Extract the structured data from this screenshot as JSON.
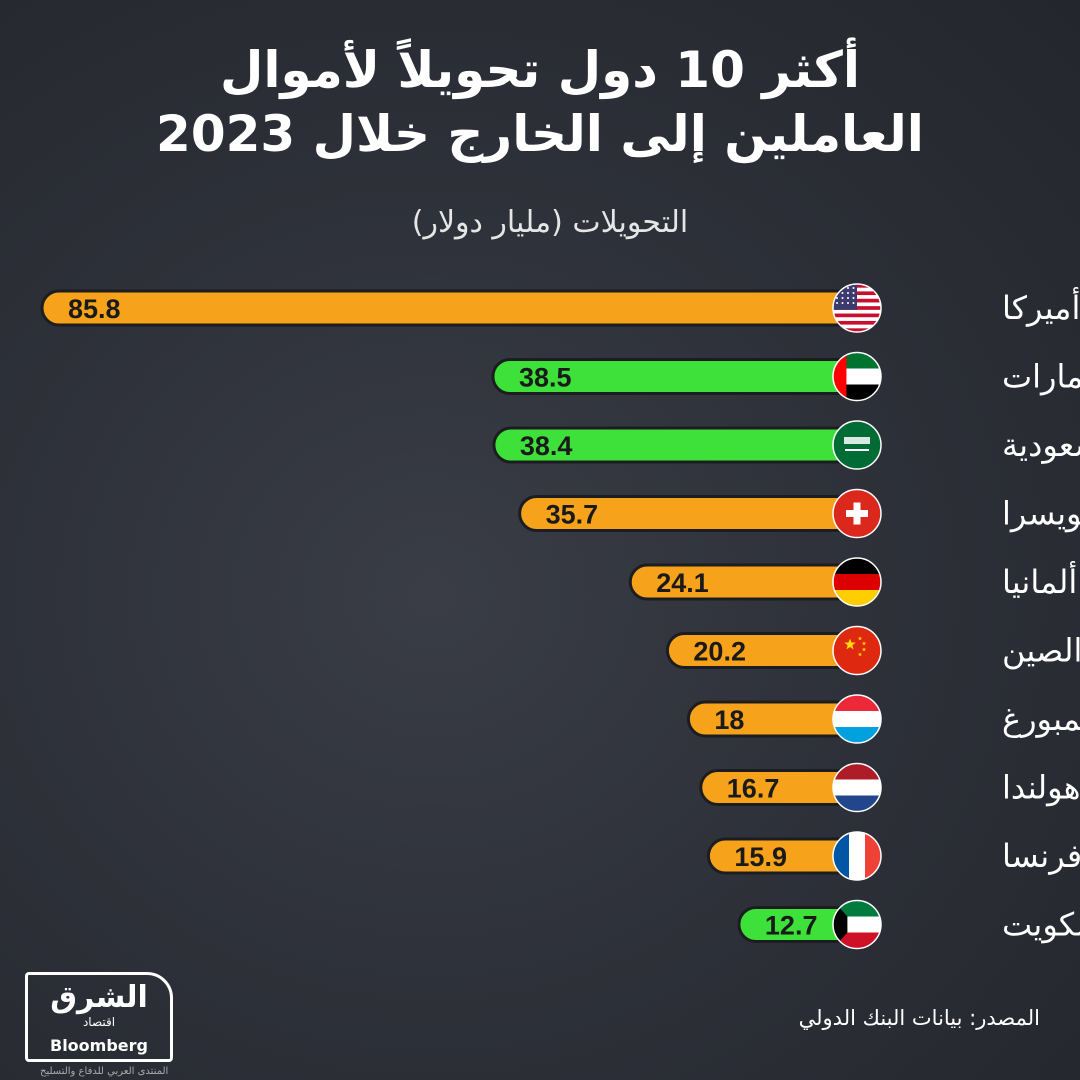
{
  "header": {
    "title_line1": "أكثر 10 دول تحويلاً لأموال",
    "title_line2": "العاملين إلى الخارج خلال 2023",
    "subtitle": "التحويلات (مليار دولار)"
  },
  "footer": {
    "source": "المصدر: بيانات البنك الدولي",
    "logo_main": "الشرق",
    "logo_sub": "اقتصاد",
    "logo_brand": "Bloomberg",
    "watermark": "المنتدى العربي للدفاع والتسليح"
  },
  "colors": {
    "orange": "#f7a21b",
    "green": "#3ee03a",
    "bar_outline": "#1c1d21",
    "value_text": "#1a1a1a"
  },
  "chart_data": {
    "type": "bar",
    "orientation": "horizontal",
    "title": "أكثر 10 دول تحويلاً لأموال العاملين إلى الخارج خلال 2023",
    "xlabel": "التحويلات (مليار دولار)",
    "xlim": [
      0,
      85.8
    ],
    "categories": [
      "أميركا",
      "الإمارات",
      "السعودية",
      "سويسرا",
      "ألمانيا",
      "الصين",
      "لوكسمبورغ",
      "هولندا",
      "فرنسا",
      "الكويت"
    ],
    "values": [
      85.8,
      38.5,
      38.4,
      35.7,
      24.1,
      20.2,
      18,
      16.7,
      15.9,
      12.7
    ],
    "value_labels": [
      "85.8",
      "38.5",
      "38.4",
      "35.7",
      "24.1",
      "20.2",
      "18",
      "16.7",
      "15.9",
      "12.7"
    ],
    "bar_colors": [
      "orange",
      "green",
      "green",
      "orange",
      "orange",
      "orange",
      "orange",
      "orange",
      "orange",
      "green"
    ],
    "flags": [
      "usa-flag-icon",
      "uae-flag-icon",
      "saudi-flag-icon",
      "switzerland-flag-icon",
      "germany-flag-icon",
      "china-flag-icon",
      "luxembourg-flag-icon",
      "netherlands-flag-icon",
      "france-flag-icon",
      "kuwait-flag-icon"
    ]
  }
}
